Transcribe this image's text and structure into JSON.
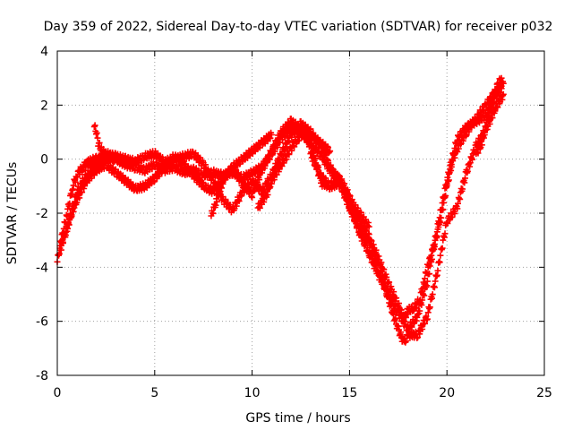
{
  "chart_data": {
    "type": "scatter",
    "title": "Day 359 of 2022, Sidereal Day-to-day VTEC variation (SDTVAR) for receiver p032",
    "xlabel": "GPS time / hours",
    "ylabel": "SDTVAR / TECUs",
    "xlim": [
      0,
      25
    ],
    "ylim": [
      -8,
      4
    ],
    "xticks": [
      0,
      5,
      10,
      15,
      20,
      25
    ],
    "yticks": [
      -8,
      -6,
      -4,
      -2,
      0,
      2,
      4
    ],
    "grid": true,
    "marker": "+",
    "series": [
      {
        "name": "SDTVAR",
        "color": "#ff0000",
        "tracks": [
          {
            "x": [
              0,
              0.2,
              0.5,
              0.8,
              1.0,
              1.3,
              1.6,
              2.0,
              2.5,
              3.0,
              3.5,
              4.0,
              4.5,
              5.0,
              5.5,
              6.0,
              6.5,
              7.0,
              7.5,
              8.0,
              8.5,
              9.0,
              9.5,
              10.0,
              10.5,
              11.0,
              11.5,
              12.0,
              12.5,
              13.0,
              13.5,
              14.0,
              14.5,
              15.0,
              15.5,
              16.0,
              16.5,
              17.0,
              17.5,
              17.8,
              18.0,
              18.3,
              18.6,
              18.8,
              19.0,
              19.3,
              19.6,
              20.0,
              20.3,
              20.6,
              21.0,
              21.5,
              22.0,
              22.5,
              22.9
            ],
            "y": [
              -3.8,
              -3.0,
              -2.0,
              -1.0,
              -0.6,
              -0.3,
              -0.1,
              0,
              0.1,
              0,
              -0.2,
              -0.3,
              -0.4,
              -0.2,
              -0.4,
              -0.3,
              -0.5,
              -0.4,
              -0.6,
              -0.5,
              -0.6,
              -0.5,
              -0.7,
              -0.5,
              -0.3,
              0.2,
              0.8,
              1.1,
              1.0,
              0.6,
              0.2,
              -0.4,
              -0.8,
              -1.5,
              -2.3,
              -2.9,
              -3.7,
              -4.6,
              -5.4,
              -5.9,
              -5.6,
              -5.5,
              -5.2,
              -4.6,
              -4.0,
              -3.3,
              -2.5,
              -1.0,
              0,
              0.5,
              1.0,
              1.5,
              2.0,
              2.5,
              2.8
            ]
          },
          {
            "x": [
              0.1,
              0.3,
              0.6,
              1.0,
              1.5,
              2.0,
              2.5,
              3.0,
              3.5,
              4.0,
              4.5,
              5.0,
              5.5,
              6.0,
              6.5,
              7.0,
              7.5,
              8.0,
              8.5,
              9.0,
              9.5,
              10.0,
              10.5,
              11.0,
              11.5,
              12.0,
              12.5,
              13.0,
              13.5,
              14.0,
              14.5,
              15.0,
              15.5,
              16.0,
              16.5,
              17.0,
              17.5,
              17.8,
              18.0,
              18.5,
              19.0,
              19.5,
              20.0,
              20.5,
              21.0,
              21.5,
              22.0,
              22.5,
              22.9
            ],
            "y": [
              -3.5,
              -3.0,
              -2.3,
              -1.5,
              -0.8,
              -0.4,
              -0.2,
              -0.5,
              -0.8,
              -1.1,
              -1.0,
              -0.7,
              -0.3,
              0.1,
              -0.2,
              -0.6,
              -1.0,
              -1.2,
              -0.7,
              -0.3,
              -0.9,
              -1.3,
              -0.4,
              0.3,
              1.0,
              1.4,
              1.1,
              0.5,
              -0.6,
              -1.0,
              -0.9,
              -1.8,
              -2.6,
              -3.1,
              -4.0,
              -5.2,
              -6.3,
              -6.8,
              -6.5,
              -6.5,
              -5.8,
              -4.2,
              -2.3,
              -1.8,
              -0.5,
              0.5,
              1.1,
              1.9,
              2.4
            ]
          },
          {
            "x": [
              0.2,
              0.5,
              1.0,
              1.5,
              2.0,
              2.5,
              3.0,
              3.5,
              4.0,
              4.5,
              5.0,
              5.5,
              6.0,
              6.5,
              7.0,
              7.5,
              8.0,
              8.5,
              9.0,
              9.5,
              10.0,
              10.5,
              11.0,
              11.5,
              12.0,
              12.5,
              13.0,
              13.5,
              14.0,
              14.5,
              15.0,
              15.5,
              16.0,
              16.5,
              17.0,
              17.5,
              18.0,
              18.5,
              19.0,
              19.5,
              20.0,
              20.5,
              21.0,
              21.5,
              22.0,
              22.5,
              22.8
            ],
            "y": [
              -3.2,
              -2.6,
              -1.2,
              -0.6,
              -0.2,
              0.2,
              0.1,
              0,
              -0.1,
              0.1,
              0.2,
              -0.1,
              0,
              0.1,
              0.2,
              -0.2,
              -0.8,
              -1.5,
              -1.9,
              -1.2,
              -0.8,
              -1.2,
              -0.6,
              0.2,
              0.9,
              1.3,
              1.0,
              0.5,
              -0.3,
              -0.8,
              -1.7,
              -2.7,
              -3.5,
              -4.3,
              -5.0,
              -5.7,
              -6.3,
              -5.8,
              -4.5,
              -2.6,
              -0.8,
              0.7,
              1.2,
              1.4,
              1.6,
              2.3,
              2.7
            ]
          },
          {
            "x": [
              1.9,
              2.0,
              2.1,
              2.3,
              2.6,
              3.0
            ],
            "y": [
              1.2,
              1.0,
              0.6,
              0.3,
              0.1,
              0
            ]
          },
          {
            "x": [
              7.9,
              8.2,
              8.5,
              9.0,
              9.5,
              10.0,
              10.5,
              11.0
            ],
            "y": [
              -2.1,
              -1.5,
              -0.8,
              -0.3,
              0,
              0.3,
              0.6,
              0.9
            ]
          },
          {
            "x": [
              10.3,
              10.5,
              10.8,
              11.0,
              11.5,
              12.0,
              12.5,
              13.0,
              13.5,
              14.0
            ],
            "y": [
              -1.8,
              -1.6,
              -1.2,
              -0.8,
              -0.2,
              0.4,
              0.9,
              0.9,
              0.6,
              0.3
            ]
          },
          {
            "x": [
              13.0,
              13.3,
              13.6,
              14.0,
              14.4,
              14.8,
              15.2,
              15.6,
              16.0
            ],
            "y": [
              0.2,
              -0.3,
              -0.9,
              -1.0,
              -0.6,
              -1.1,
              -1.7,
              -2.1,
              -2.5
            ]
          },
          {
            "x": [
              21.5,
              21.8,
              22.0,
              22.2,
              22.5,
              22.8
            ],
            "y": [
              0.2,
              0.6,
              1.2,
              1.9,
              2.6,
              3.0
            ]
          }
        ]
      }
    ]
  }
}
